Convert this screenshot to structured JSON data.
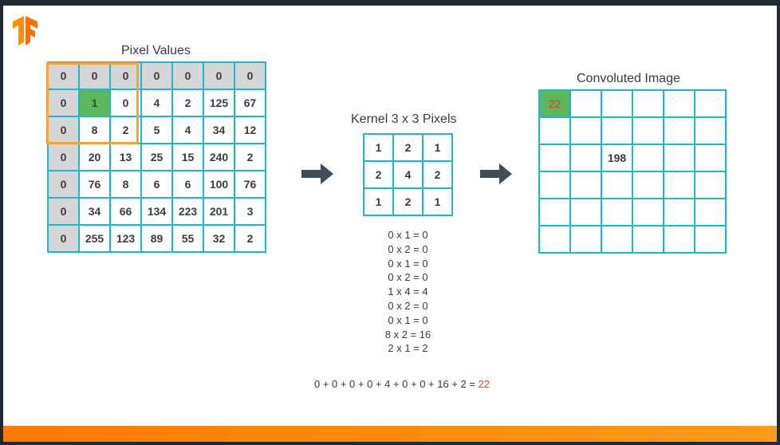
{
  "colors": {
    "accent_orange": "#ff7a00",
    "grid_cyan": "#1fb7cc",
    "highlight_green": "#5cb85c",
    "padding_gray": "#d6d6d6",
    "result_red": "#e03a2f"
  },
  "logo": {
    "icon": "tensorflow-logo"
  },
  "pixel_values": {
    "title": "Pixel Values",
    "rows": [
      [
        "0",
        "0",
        "0",
        "0",
        "0",
        "0",
        "0"
      ],
      [
        "0",
        "1",
        "0",
        "4",
        "2",
        "125",
        "67"
      ],
      [
        "0",
        "8",
        "2",
        "5",
        "4",
        "34",
        "12"
      ],
      [
        "0",
        "20",
        "13",
        "25",
        "15",
        "240",
        "2"
      ],
      [
        "0",
        "76",
        "8",
        "6",
        "6",
        "100",
        "76"
      ],
      [
        "0",
        "34",
        "66",
        "134",
        "223",
        "201",
        "3"
      ],
      [
        "0",
        "255",
        "123",
        "89",
        "55",
        "32",
        "2"
      ]
    ]
  },
  "kernel": {
    "title": "Kernel 3 x 3 Pixels",
    "rows": [
      [
        "1",
        "2",
        "1"
      ],
      [
        "2",
        "4",
        "2"
      ],
      [
        "1",
        "2",
        "1"
      ]
    ]
  },
  "convoluted": {
    "title": "Convoluted Image",
    "rows": [
      [
        "22",
        "",
        "",
        "",
        "",
        ""
      ],
      [
        "",
        "",
        "",
        "",
        "",
        ""
      ],
      [
        "",
        "",
        "198",
        "",
        "",
        ""
      ],
      [
        "",
        "",
        "",
        "",
        "",
        ""
      ],
      [
        "",
        "",
        "",
        "",
        "",
        ""
      ],
      [
        "",
        "",
        "",
        "",
        "",
        ""
      ]
    ]
  },
  "calculations": [
    "0 x 1 = 0",
    "0 x 2 = 0",
    "0 x 1 = 0",
    "0 x 2 = 0",
    "1 x 4 = 4",
    "0 x 2 = 0",
    "0 x 1 = 0",
    "8 x 2 = 16",
    "2 x 1 = 2"
  ],
  "sum": {
    "expression": "0 + 0 + 0 + 0 + 4 + 0 + 0 + 16 + 2 = ",
    "result": "22"
  }
}
